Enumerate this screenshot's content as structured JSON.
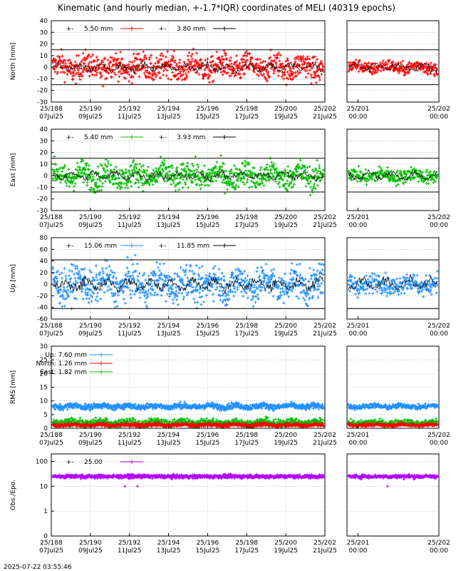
{
  "chart_data": {
    "type": "scatter",
    "title": "Kinematic (and hourly median, +-1.7*IQR) coordinates of MELI (40319 epochs)",
    "timestamp": "2025-07-22 03:55:46",
    "x_main_ticks": [
      {
        "doy": "25/188",
        "date": "07Jul25"
      },
      {
        "doy": "25/190",
        "date": "09Jul25"
      },
      {
        "doy": "25/192",
        "date": "11Jul25"
      },
      {
        "doy": "25/194",
        "date": "13Jul25"
      },
      {
        "doy": "25/196",
        "date": "15Jul25"
      },
      {
        "doy": "25/198",
        "date": "17Jul25"
      },
      {
        "doy": "25/200",
        "date": "19Jul25"
      },
      {
        "doy": "25/202",
        "date": "21Jul25"
      }
    ],
    "x_zoom_ticks": [
      {
        "doy": "25/201",
        "date": "00:00"
      },
      {
        "doy": "25/202",
        "date": "00:00"
      }
    ],
    "panels": [
      {
        "name": "north",
        "ylabel": "North [mm]",
        "yscale": "linear",
        "ylim": [
          -30,
          40
        ],
        "yticks": [
          -30,
          -20,
          -10,
          0,
          10,
          20,
          30,
          40
        ],
        "bounds": [
          -15,
          15
        ],
        "legend": [
          {
            "label": "5.50 mm",
            "color": "#ff0000"
          },
          {
            "label": "3.80 mm",
            "color": "#000000"
          }
        ],
        "series": [
          {
            "name": "North",
            "color": "#ff0000",
            "center": 0,
            "spread": 14,
            "zoom_spread": 7
          }
        ],
        "median_amp": 4
      },
      {
        "name": "east",
        "ylabel": "East [mm]",
        "yscale": "linear",
        "ylim": [
          -30,
          40
        ],
        "yticks": [
          -30,
          -20,
          -10,
          0,
          10,
          20,
          30,
          40
        ],
        "bounds": [
          -14,
          15
        ],
        "legend": [
          {
            "label": "5.40 mm",
            "color": "#00bb00"
          },
          {
            "label": "3.93 mm",
            "color": "#000000"
          }
        ],
        "series": [
          {
            "name": "East",
            "color": "#00bb00",
            "center": 0,
            "spread": 14,
            "zoom_spread": 8
          }
        ],
        "median_amp": 4
      },
      {
        "name": "up",
        "ylabel": "Up [mm]",
        "yscale": "linear",
        "ylim": [
          -60,
          80
        ],
        "yticks": [
          -60,
          -40,
          -20,
          0,
          20,
          40,
          60,
          80
        ],
        "bounds": [
          -42,
          42
        ],
        "legend": [
          {
            "label": "15.06 mm",
            "color": "#1f8fff"
          },
          {
            "label": "11.85 mm",
            "color": "#000000"
          }
        ],
        "series": [
          {
            "name": "Up",
            "color": "#1f8fff",
            "center": 0,
            "spread": 38,
            "zoom_spread": 22
          }
        ],
        "median_amp": 12
      },
      {
        "name": "rms",
        "ylabel": "RMS [mm]",
        "yscale": "linear",
        "ylim": [
          0,
          30
        ],
        "yticks": [
          0,
          5,
          10,
          15,
          20,
          25,
          30
        ],
        "bounds": [],
        "legend": [
          {
            "label": "Up:   7.60 mm",
            "color": "#1f8fff"
          },
          {
            "label": "North:   1.26 mm",
            "color": "#ff0000"
          },
          {
            "label": "East:   1.82 mm",
            "color": "#00bb00"
          }
        ],
        "series": [
          {
            "name": "East",
            "color": "#00bb00",
            "center": 2,
            "spread": 1.8,
            "zoom_spread": 1.4
          },
          {
            "name": "North",
            "color": "#ff0000",
            "center": 1.2,
            "spread": 0.8,
            "zoom_spread": 0.8
          },
          {
            "name": "Up",
            "color": "#1f8fff",
            "center": 8,
            "spread": 1.4,
            "zoom_spread": 1.2
          }
        ],
        "median_amp": 0
      },
      {
        "name": "obs",
        "ylabel": "Obs./Epo.",
        "yscale": "log",
        "ylim": [
          0.1,
          200
        ],
        "ytick_values": [
          0.1,
          1,
          10,
          100
        ],
        "ytick_labels": [
          "0",
          "1",
          "10",
          "100"
        ],
        "bounds": [],
        "legend": [
          {
            "label": "25.00",
            "color": "#b000ff"
          }
        ],
        "series": [
          {
            "name": "Obs",
            "color": "#b000ff",
            "center": 25,
            "spread": 5,
            "zoom_spread": 4
          }
        ],
        "median_amp": 0
      }
    ]
  }
}
